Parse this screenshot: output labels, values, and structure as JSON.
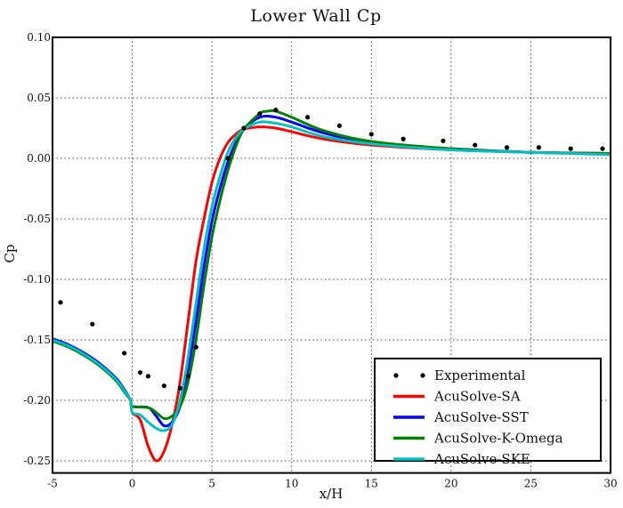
{
  "chart_data": {
    "type": "line",
    "title": "Lower Wall Cp",
    "xlabel": "x/H",
    "ylabel": "Cp",
    "xlim": [
      -5,
      30
    ],
    "ylim": [
      -0.26,
      0.1
    ],
    "xticks": [
      -5,
      0,
      5,
      10,
      15,
      20,
      25,
      30
    ],
    "xtick_labels": [
      "-5",
      "0",
      "5",
      "10",
      "15",
      "20",
      "25",
      "30"
    ],
    "yticks": [
      0.1,
      0.05,
      0.0,
      -0.05,
      -0.1,
      -0.15,
      -0.2,
      -0.25
    ],
    "ytick_labels": [
      "0.10",
      "0.05",
      "0.00",
      "-0.05",
      "-0.10",
      "-0.15",
      "-0.20",
      "-0.25"
    ],
    "grid": true,
    "legend_placement": "lower-right",
    "series": [
      {
        "name": "Experimental",
        "style": "markers",
        "color": "#000000",
        "x": [
          -4.5,
          -2.5,
          -0.5,
          0.5,
          1.0,
          2.0,
          3.0,
          3.5,
          4.0,
          6.0,
          7.0,
          8.0,
          9.0,
          11.0,
          13.0,
          15.0,
          17.0,
          19.5,
          21.5,
          23.5,
          25.5,
          27.5,
          29.5
        ],
        "y": [
          -0.119,
          -0.137,
          -0.161,
          -0.177,
          -0.18,
          -0.188,
          -0.19,
          -0.18,
          -0.156,
          0.0,
          0.025,
          0.037,
          0.04,
          0.034,
          0.027,
          0.02,
          0.016,
          0.0145,
          0.011,
          0.009,
          0.009,
          0.008,
          0.008
        ]
      },
      {
        "name": "AcuSolve-SA",
        "style": "line",
        "color": "#ff0000",
        "x": [
          -5,
          -4,
          -3,
          -2,
          -1,
          -0.5,
          -0.1,
          0,
          0.5,
          1.0,
          1.5,
          2.0,
          2.5,
          3.0,
          3.5,
          4.0,
          4.5,
          5.0,
          5.5,
          6.0,
          6.5,
          7.0,
          8.0,
          9.0,
          10.0,
          12.0,
          15.0,
          20.0,
          25.0,
          30.0
        ],
        "y": [
          -0.15,
          -0.155,
          -0.162,
          -0.171,
          -0.183,
          -0.192,
          -0.2,
          -0.21,
          -0.216,
          -0.238,
          -0.25,
          -0.242,
          -0.22,
          -0.185,
          -0.135,
          -0.085,
          -0.05,
          -0.02,
          0.0,
          0.013,
          0.02,
          0.024,
          0.026,
          0.025,
          0.022,
          0.016,
          0.011,
          0.007,
          0.005,
          0.004
        ]
      },
      {
        "name": "AcuSolve-SST",
        "style": "line",
        "color": "#0000ff",
        "x": [
          -5,
          -4,
          -3,
          -2,
          -1,
          -0.5,
          -0.1,
          0,
          1.0,
          1.5,
          2.0,
          2.5,
          3.0,
          3.5,
          4.0,
          4.5,
          5.0,
          5.5,
          6.0,
          6.5,
          7.0,
          8.0,
          9.0,
          10.0,
          12.0,
          15.0,
          20.0,
          25.0,
          30.0
        ],
        "y": [
          -0.149,
          -0.154,
          -0.161,
          -0.17,
          -0.182,
          -0.191,
          -0.2,
          -0.205,
          -0.206,
          -0.213,
          -0.221,
          -0.218,
          -0.205,
          -0.175,
          -0.135,
          -0.09,
          -0.052,
          -0.025,
          -0.003,
          0.013,
          0.024,
          0.034,
          0.034,
          0.03,
          0.021,
          0.013,
          0.008,
          0.005,
          0.004
        ]
      },
      {
        "name": "AcuSolve-K-Omega",
        "style": "line",
        "color": "#008000",
        "x": [
          -5,
          -4,
          -3,
          -2,
          -1,
          -0.5,
          -0.1,
          0,
          1.0,
          1.5,
          2.0,
          2.5,
          3.0,
          3.5,
          4.0,
          4.5,
          5.0,
          5.5,
          6.0,
          6.5,
          7.0,
          8.0,
          8.5,
          9.0,
          10.0,
          12.0,
          15.0,
          20.0,
          25.0,
          30.0
        ],
        "y": [
          -0.151,
          -0.156,
          -0.163,
          -0.172,
          -0.184,
          -0.193,
          -0.2,
          -0.205,
          -0.206,
          -0.21,
          -0.215,
          -0.213,
          -0.205,
          -0.185,
          -0.15,
          -0.105,
          -0.065,
          -0.035,
          -0.01,
          0.01,
          0.024,
          0.037,
          0.039,
          0.039,
          0.034,
          0.023,
          0.014,
          0.008,
          0.005,
          0.004
        ]
      },
      {
        "name": "AcuSolve-SKE",
        "style": "line",
        "color": "#00bfbf",
        "x": [
          -5,
          -4,
          -3,
          -2,
          -1,
          -0.5,
          -0.1,
          0,
          0.5,
          1.0,
          1.5,
          2.0,
          2.5,
          3.0,
          3.5,
          4.0,
          4.5,
          5.0,
          5.5,
          6.0,
          6.5,
          7.0,
          8.0,
          9.0,
          10.0,
          12.0,
          15.0,
          20.0,
          25.0,
          30.0
        ],
        "y": [
          -0.15,
          -0.155,
          -0.162,
          -0.171,
          -0.183,
          -0.192,
          -0.2,
          -0.21,
          -0.212,
          -0.218,
          -0.223,
          -0.225,
          -0.22,
          -0.2,
          -0.165,
          -0.12,
          -0.075,
          -0.04,
          -0.015,
          0.005,
          0.017,
          0.024,
          0.03,
          0.029,
          0.026,
          0.018,
          0.012,
          0.007,
          0.005,
          0.003
        ]
      }
    ]
  }
}
